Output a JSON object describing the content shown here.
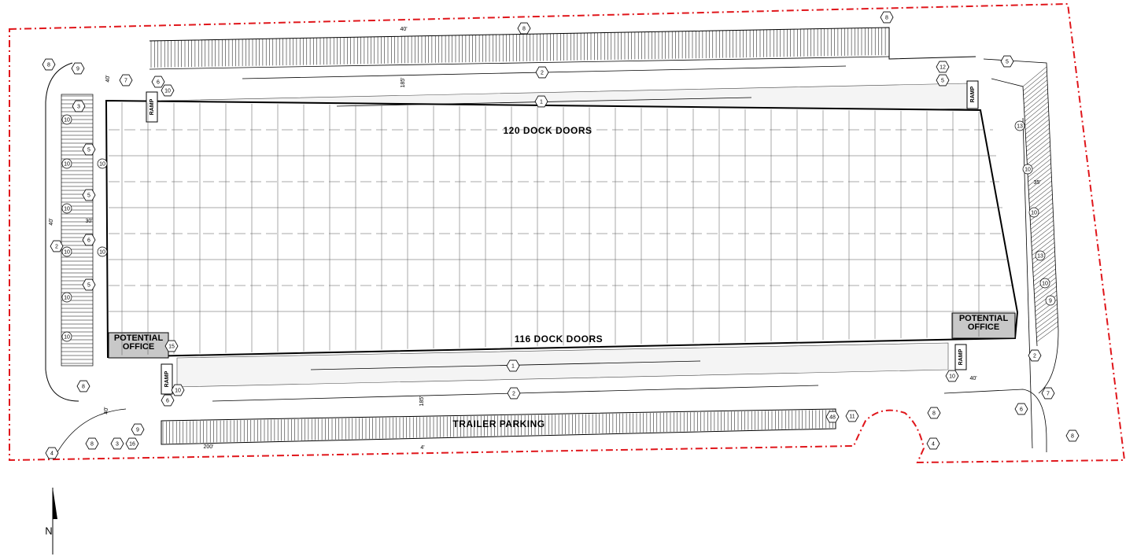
{
  "labels": {
    "north_dock": "120 DOCK DOORS",
    "south_dock": "116 DOCK DOORS",
    "trailer_parking": "TRAILER PARKING",
    "north_arrow": "N"
  },
  "offices": [
    {
      "lines": [
        "POTENTIAL",
        "OFFICE"
      ]
    },
    {
      "lines": [
        "POTENTIAL",
        "OFFICE"
      ]
    }
  ],
  "ramps": [
    "RAMP",
    "RAMP",
    "RAMP",
    "RAMP"
  ],
  "dimensions": [
    "40'",
    "185'",
    "40'",
    "35'",
    "40'",
    "30'",
    "40'",
    "185'",
    "200'",
    "4'",
    "40'"
  ],
  "keynotes": [
    "8",
    "8",
    "8",
    "9",
    "2",
    "12",
    "5",
    "7",
    "6",
    "10",
    "5",
    "1",
    "3",
    "5",
    "5",
    "6",
    "5",
    "2",
    "15",
    "1",
    "2",
    "8",
    "6",
    "10",
    "9",
    "8",
    "3",
    "16",
    "4",
    "11",
    "8",
    "4",
    "10",
    "2",
    "7",
    "8",
    "6",
    "48"
  ],
  "parking_counts": [
    "10",
    "10",
    "10",
    "10",
    "10",
    "10",
    "10",
    "10",
    "13",
    "10",
    "10",
    "13",
    "10",
    "9"
  ]
}
